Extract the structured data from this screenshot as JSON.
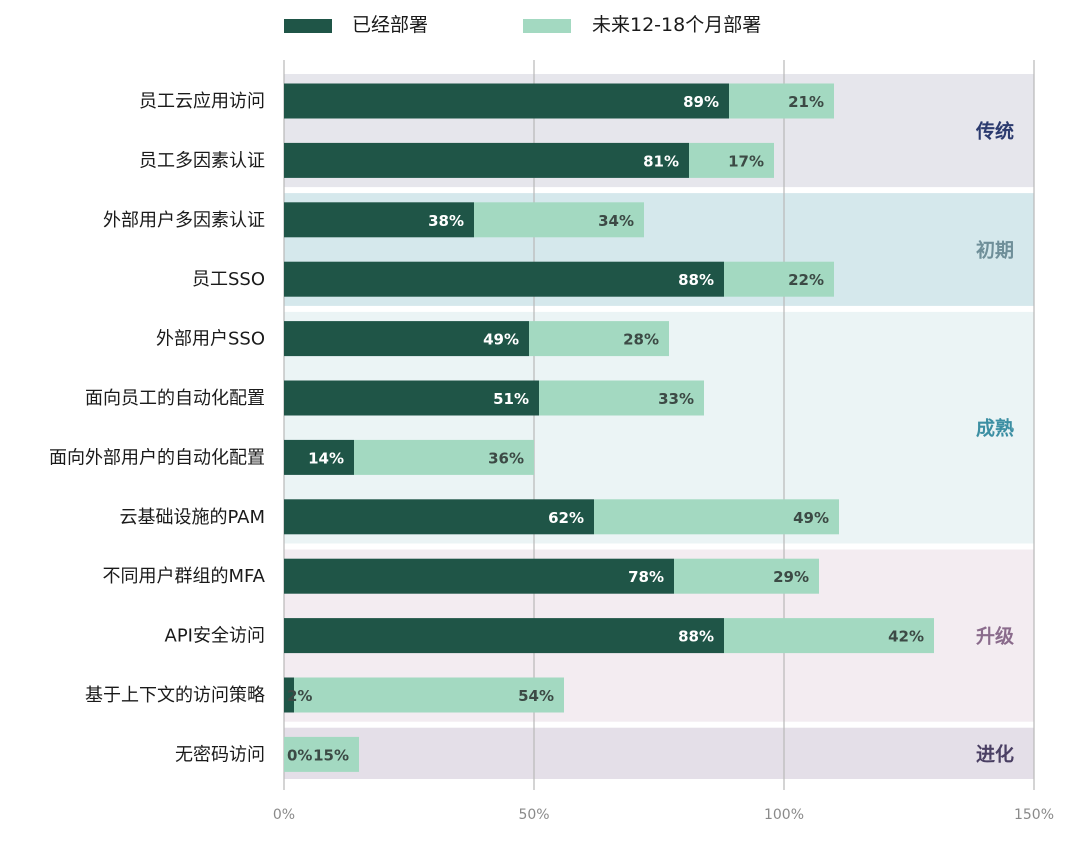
{
  "chart_data": {
    "type": "bar",
    "orientation": "horizontal",
    "stacked": true,
    "categories": [
      "员工云应用访问",
      "员工多因素认证",
      "外部用户多因素认证",
      "员工SSO",
      "外部用户SSO",
      "面向员工的自动化配置",
      "面向外部用户的自动化配置",
      "云基础设施的PAM",
      "不同用户群组的MFA",
      "API安全访问",
      "基于上下文的访问策略",
      "无密码访问"
    ],
    "series": [
      {
        "name": "已经部署",
        "color": "#1f5547",
        "values": [
          89,
          81,
          38,
          88,
          49,
          51,
          14,
          62,
          78,
          88,
          2,
          0
        ],
        "labels": [
          "89%",
          "81%",
          "38%",
          "88%",
          "49%",
          "51%",
          "14%",
          "62%",
          "78%",
          "88%",
          "2%",
          "0%"
        ]
      },
      {
        "name": "未来12-18个月部署",
        "color": "#a3d9c1",
        "values": [
          21,
          17,
          34,
          22,
          28,
          33,
          36,
          49,
          29,
          42,
          54,
          15
        ],
        "labels": [
          "21%",
          "17%",
          "34%",
          "22%",
          "28%",
          "33%",
          "36%",
          "49%",
          "29%",
          "42%",
          "54%",
          "15%"
        ]
      }
    ],
    "stage_bands": [
      {
        "label": "传统",
        "rows": [
          0,
          1
        ],
        "bg": "#e6e6ec",
        "text_color": "#2b3a6e"
      },
      {
        "label": "初期",
        "rows": [
          2,
          3
        ],
        "bg": "#d5e8ec",
        "text_color": "#6f8f99"
      },
      {
        "label": "成熟",
        "rows": [
          4,
          5,
          6,
          7
        ],
        "bg": "#ebf4f5",
        "text_color": "#3c8fa3"
      },
      {
        "label": "升级",
        "rows": [
          8,
          9,
          10
        ],
        "bg": "#f3ecf1",
        "text_color": "#8a6b8c"
      },
      {
        "label": "进化",
        "rows": [
          11
        ],
        "bg": "#e4dfe8",
        "text_color": "#4a3f63"
      }
    ],
    "x_ticks": [
      "0%",
      "50%",
      "100%",
      "150%"
    ],
    "xlim": [
      0,
      150
    ],
    "grid": true,
    "legend_position": "top"
  }
}
